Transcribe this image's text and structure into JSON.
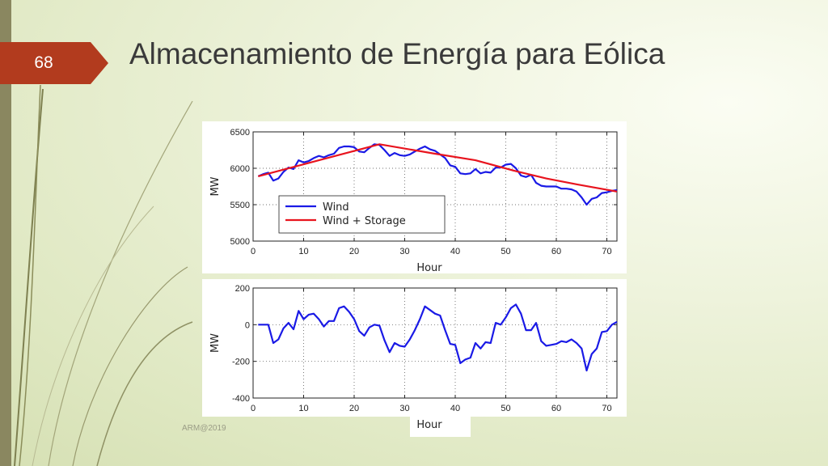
{
  "slide": {
    "number": "68",
    "title": "Almacenamiento de Energía para Eólica",
    "footer": "ARM@2019"
  },
  "colors": {
    "accent": "#b23b1e",
    "wind": "#1a1ae6",
    "storage": "#e8141e"
  },
  "chart_data": [
    {
      "type": "line",
      "ylabel": "MW",
      "xlabel": "Hour",
      "xlim": [
        0,
        72
      ],
      "ylim": [
        5000,
        6500
      ],
      "xticks": [
        0,
        10,
        20,
        30,
        40,
        50,
        60,
        70
      ],
      "yticks": [
        5000,
        5500,
        6000,
        6500
      ],
      "grid": "dotted",
      "legend": "lower-left",
      "series": [
        {
          "name": "Wind",
          "color": "#1a1ae6",
          "x": [
            1,
            2,
            3,
            4,
            5,
            6,
            7,
            8,
            9,
            10,
            11,
            12,
            13,
            14,
            15,
            16,
            17,
            18,
            19,
            20,
            21,
            22,
            23,
            24,
            25,
            26,
            27,
            28,
            29,
            30,
            31,
            32,
            33,
            34,
            35,
            36,
            37,
            38,
            39,
            40,
            41,
            42,
            43,
            44,
            45,
            46,
            47,
            48,
            49,
            50,
            51,
            52,
            53,
            54,
            55,
            56,
            57,
            58,
            59,
            60,
            61,
            62,
            63,
            64,
            65,
            66,
            67,
            68,
            69,
            70,
            71,
            72
          ],
          "y": [
            5890,
            5920,
            5940,
            5830,
            5860,
            5950,
            6010,
            5990,
            6110,
            6080,
            6100,
            6140,
            6170,
            6150,
            6180,
            6200,
            6280,
            6300,
            6300,
            6290,
            6230,
            6220,
            6280,
            6330,
            6320,
            6250,
            6170,
            6210,
            6180,
            6170,
            6190,
            6230,
            6270,
            6300,
            6260,
            6240,
            6190,
            6140,
            6040,
            6020,
            5930,
            5920,
            5930,
            5990,
            5930,
            5950,
            5940,
            6010,
            6010,
            6050,
            6060,
            6000,
            5900,
            5880,
            5910,
            5800,
            5760,
            5750,
            5750,
            5750,
            5720,
            5720,
            5710,
            5680,
            5600,
            5500,
            5580,
            5600,
            5660,
            5670,
            5690,
            5700
          ]
        },
        {
          "name": "Wind + Storage",
          "color": "#e8141e",
          "x": [
            1,
            25,
            36,
            44,
            52,
            58,
            64,
            68,
            72
          ],
          "y": [
            5890,
            6330,
            6200,
            6110,
            5960,
            5860,
            5780,
            5730,
            5680
          ]
        }
      ]
    },
    {
      "type": "line",
      "ylabel": "MW",
      "xlabel": "Hour",
      "xlim": [
        0,
        72
      ],
      "ylim": [
        -400,
        200
      ],
      "xticks": [
        0,
        10,
        20,
        30,
        40,
        50,
        60,
        70
      ],
      "yticks": [
        -400,
        -200,
        0,
        200
      ],
      "grid": "dotted",
      "series": [
        {
          "color": "#1a1ae6",
          "x": [
            1,
            2,
            3,
            4,
            5,
            6,
            7,
            8,
            9,
            10,
            11,
            12,
            13,
            14,
            15,
            16,
            17,
            18,
            19,
            20,
            21,
            22,
            23,
            24,
            25,
            26,
            27,
            28,
            29,
            30,
            31,
            32,
            33,
            34,
            35,
            36,
            37,
            38,
            39,
            40,
            41,
            42,
            43,
            44,
            45,
            46,
            47,
            48,
            49,
            50,
            51,
            52,
            53,
            54,
            55,
            56,
            57,
            58,
            59,
            60,
            61,
            62,
            63,
            64,
            65,
            66,
            67,
            68,
            69,
            70,
            71,
            72
          ],
          "y": [
            0,
            0,
            0,
            -100,
            -80,
            -20,
            10,
            -25,
            75,
            30,
            55,
            60,
            30,
            -10,
            20,
            20,
            90,
            100,
            70,
            30,
            -35,
            -60,
            -15,
            0,
            -5,
            -85,
            -150,
            -100,
            -115,
            -120,
            -80,
            -30,
            30,
            100,
            80,
            60,
            50,
            -30,
            -105,
            -110,
            -210,
            -190,
            -180,
            -100,
            -130,
            -95,
            -100,
            10,
            0,
            40,
            90,
            110,
            60,
            -30,
            -30,
            10,
            -90,
            -115,
            -110,
            -105,
            -90,
            -95,
            -80,
            -100,
            -130,
            -250,
            -160,
            -130,
            -40,
            -35,
            0,
            15
          ]
        }
      ]
    }
  ]
}
